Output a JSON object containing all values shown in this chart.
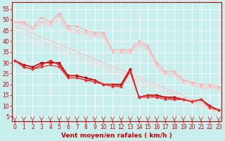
{
  "title": "",
  "xlabel": "Vent moyen/en rafales ( km/h )",
  "ylabel": "",
  "bg_color": "#c8eeee",
  "grid_color": "#ffffff",
  "x_ticks": [
    0,
    1,
    2,
    3,
    4,
    5,
    6,
    7,
    8,
    9,
    10,
    11,
    12,
    13,
    14,
    15,
    16,
    17,
    18,
    19,
    20,
    21,
    22,
    23
  ],
  "y_ticks": [
    5,
    10,
    15,
    20,
    25,
    30,
    35,
    40,
    45,
    50,
    55
  ],
  "xlim": [
    -0.3,
    23.3
  ],
  "ylim": [
    3,
    58
  ],
  "lines": [
    {
      "x": [
        0,
        1,
        2,
        3,
        4,
        5,
        6,
        7,
        8,
        9,
        10,
        11,
        12,
        13,
        14,
        15,
        16,
        17,
        18,
        19,
        20,
        21,
        22,
        23
      ],
      "y": [
        49,
        49,
        46,
        51,
        49,
        53,
        47,
        47,
        45,
        44,
        44,
        36,
        36,
        36,
        40,
        38,
        30,
        26,
        26,
        22,
        21,
        20,
        20,
        19
      ],
      "color": "#ffaaaa",
      "lw": 0.8,
      "marker": "D",
      "ms": 1.8
    },
    {
      "x": [
        0,
        1,
        2,
        3,
        4,
        5,
        6,
        7,
        8,
        9,
        10,
        11,
        12,
        13,
        14,
        15,
        16,
        17,
        18,
        19,
        20,
        21,
        22,
        23
      ],
      "y": [
        49,
        48,
        46,
        49,
        48,
        52,
        46,
        45,
        44,
        43,
        43,
        35,
        35,
        35,
        39,
        37,
        29,
        25,
        25,
        21,
        20,
        19,
        19,
        18
      ],
      "color": "#ffbbbb",
      "lw": 0.8,
      "marker": "D",
      "ms": 1.8
    },
    {
      "x": [
        0,
        1,
        2,
        3,
        4,
        5,
        6,
        7,
        8,
        9,
        10,
        11,
        12,
        13,
        14,
        15,
        16,
        17,
        18,
        19,
        20,
        21,
        22,
        23
      ],
      "y": [
        49,
        47,
        45,
        48,
        47,
        50,
        45,
        44,
        43,
        42,
        42,
        35,
        35,
        34,
        38,
        36,
        28,
        24,
        24,
        21,
        20,
        18,
        18,
        18
      ],
      "color": "#ffcccc",
      "lw": 0.8,
      "marker": null,
      "ms": 0
    },
    {
      "x": [
        0,
        23
      ],
      "y": [
        47,
        8
      ],
      "color": "#ffbbbb",
      "lw": 0.7,
      "marker": null,
      "ms": 0
    },
    {
      "x": [
        0,
        23
      ],
      "y": [
        45,
        7
      ],
      "color": "#ffcccc",
      "lw": 0.7,
      "marker": null,
      "ms": 0
    },
    {
      "x": [
        0,
        23
      ],
      "y": [
        43,
        6
      ],
      "color": "#ffdddd",
      "lw": 0.7,
      "marker": null,
      "ms": 0
    },
    {
      "x": [
        0,
        1,
        2,
        3,
        4,
        5,
        6,
        7,
        8,
        9,
        10,
        11,
        12,
        13,
        14,
        15,
        16,
        17,
        18,
        19,
        20,
        21,
        22,
        23
      ],
      "y": [
        31,
        29,
        28,
        30,
        30,
        30,
        24,
        24,
        23,
        22,
        20,
        20,
        20,
        27,
        14,
        15,
        15,
        14,
        14,
        13,
        12,
        13,
        10,
        8
      ],
      "color": "#cc0000",
      "lw": 1.2,
      "marker": "D",
      "ms": 2.2
    },
    {
      "x": [
        0,
        1,
        2,
        3,
        4,
        5,
        6,
        7,
        8,
        9,
        10,
        11,
        12,
        13,
        14,
        15,
        16,
        17,
        18,
        19,
        20,
        21,
        22,
        23
      ],
      "y": [
        31,
        28,
        27,
        29,
        31,
        29,
        23,
        23,
        22,
        22,
        20,
        20,
        19,
        26,
        14,
        15,
        14,
        14,
        13,
        13,
        12,
        13,
        10,
        8
      ],
      "color": "#dd2222",
      "lw": 1.0,
      "marker": "D",
      "ms": 2.0
    },
    {
      "x": [
        0,
        1,
        2,
        3,
        4,
        5,
        6,
        7,
        8,
        9,
        10,
        11,
        12,
        13,
        14,
        15,
        16,
        17,
        18,
        19,
        20,
        21,
        22,
        23
      ],
      "y": [
        31,
        28,
        27,
        28,
        29,
        28,
        23,
        23,
        22,
        21,
        20,
        19,
        19,
        26,
        14,
        14,
        14,
        13,
        13,
        13,
        12,
        13,
        9,
        8
      ],
      "color": "#ee3333",
      "lw": 0.9,
      "marker": "D",
      "ms": 1.8
    }
  ],
  "axis_color": "#cc0000",
  "tick_color": "#cc0000",
  "label_color": "#cc0000",
  "xlabel_fontsize": 6.5,
  "tick_fontsize": 5.5
}
